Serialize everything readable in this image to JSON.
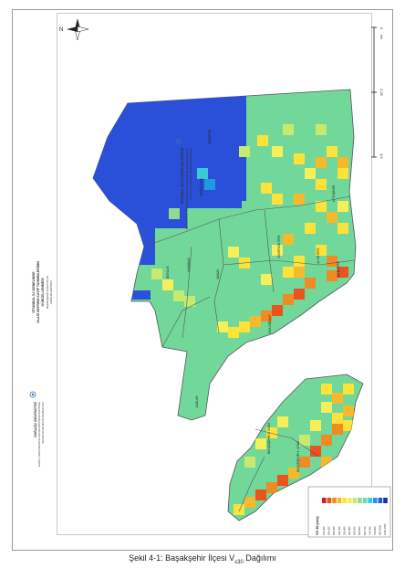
{
  "figure": {
    "caption_main": "Şekil 4-1: Başakşehir İlçesi V",
    "caption_sub": "s30",
    "caption_tail": " Dağılımı"
  },
  "title_block": {
    "org_main": "İSTANBUL BÜYÜKŞEHİR BELEDİYESİ",
    "org_sub1": "DEPREM RİSK YÖNETİMİ VE KENTSEL İYİLEŞTİRME DAİRE BAŞKANLIĞI",
    "org_sub2": "DEPREM VE ZEMİN İNCELEME MÜDÜRLÜĞÜ",
    "project_title1": "İSTANBUL İLİ GENELİNDE",
    "project_title2": "OLASI DEPREM KAYIP TAHMİNLERİNİN",
    "project_title3": "GÜNCELLENMESİ",
    "project_sub": "BAŞAKŞEHİR İLÇESİ VS 30",
    "project_sub2": "DAĞILIM HARİTASI",
    "contractor1": "BOĞAZİÇİ ÜNİVERSİTESİ",
    "contractor2": "KANDİLLİ RASATHANESİ VE DEPREM ARAŞTIRMA ENSTİTÜSÜ",
    "contractor3": "DEPREM MÜHENDİSLİĞİ ANABİLİM DALI"
  },
  "north_arrow": {
    "label": "N"
  },
  "scale_bar": {
    "tick_0": "0",
    "tick_1": "2,25",
    "tick_2": "4,5",
    "unit": "km"
  },
  "legend": {
    "title": "VS 30 (m/s)",
    "colors": [
      "#d7191c",
      "#e8531e",
      "#f08a24",
      "#f7b92c",
      "#fde23a",
      "#f5ef5c",
      "#c6ea6f",
      "#8fdc8a",
      "#6fd8b0",
      "#3cc9d6",
      "#1e9be0",
      "#1f5fd6",
      "#1a2fa8"
    ],
    "ranges": [
      "100-200",
      "200-250",
      "250-300",
      "300-350",
      "350-400",
      "400-450",
      "450-500",
      "500-600",
      "600-700",
      "700-760",
      "760-900",
      "900-1000",
      "1000-1050"
    ]
  },
  "neighborhoods": [
    "ŞAHİNTEPE",
    "ALTINŞEHİR",
    "GÜVERCİNTEPE",
    "BAHÇEŞEHİR 1. KISIM",
    "BAHÇEŞEHİR 2. KISIM",
    "ZİYA GÖKALP",
    "KAYABAŞI",
    "ŞAMLAR",
    "BOYALIK",
    "HOŞDERE",
    "ÖRNEKTEPE",
    "ALTINTEPE",
    "BAŞAK"
  ],
  "colors": {
    "base": "#72d89a",
    "high_vs": "#2a4fd8",
    "frame": "#9a9a9a"
  }
}
